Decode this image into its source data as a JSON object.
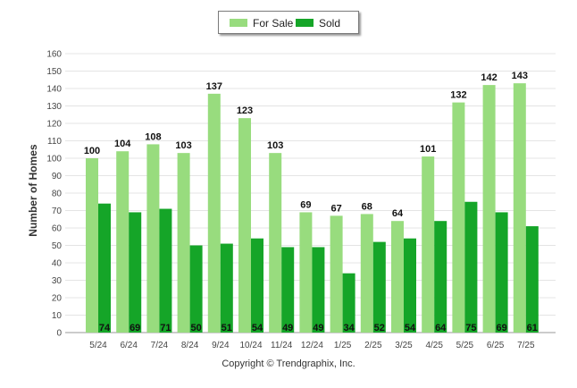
{
  "chart_data": {
    "type": "bar",
    "categories": [
      "5/24",
      "6/24",
      "7/24",
      "8/24",
      "9/24",
      "10/24",
      "11/24",
      "12/24",
      "1/25",
      "2/25",
      "3/25",
      "4/25",
      "5/25",
      "6/25",
      "7/25"
    ],
    "series": [
      {
        "name": "For Sale",
        "color": "#98dc7e",
        "values": [
          100,
          104,
          108,
          103,
          137,
          123,
          103,
          69,
          67,
          68,
          64,
          101,
          132,
          142,
          143
        ]
      },
      {
        "name": "Sold",
        "color": "#15a528",
        "values": [
          74,
          69,
          71,
          50,
          51,
          54,
          49,
          49,
          34,
          52,
          54,
          64,
          75,
          69,
          61
        ]
      }
    ],
    "ylabel": "Number of Homes",
    "ylim": [
      0,
      160
    ],
    "yticks": [
      0,
      10,
      20,
      30,
      40,
      50,
      60,
      70,
      80,
      90,
      100,
      110,
      120,
      130,
      140,
      150,
      160
    ],
    "grid": true,
    "legend_position": "top-center"
  },
  "footer": {
    "copyright": "Copyright © Trendgraphix, Inc."
  }
}
